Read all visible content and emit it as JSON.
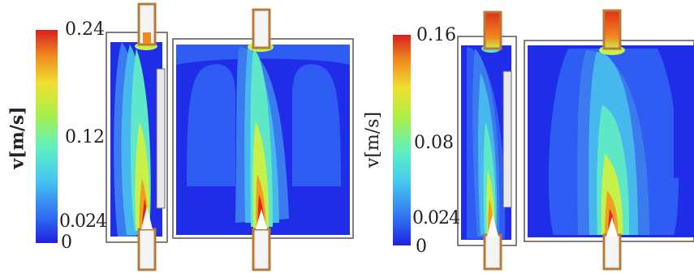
{
  "panels": [
    {
      "colorbar": {
        "unit_label": "v[m/s]",
        "ticks": [
          "0.24",
          "0.12",
          "0.024",
          "0"
        ],
        "tick_values": [
          0.24,
          0.12,
          0.024,
          0
        ]
      },
      "views": [
        "side-section",
        "front-section"
      ]
    },
    {
      "colorbar": {
        "unit_label": "v[m/s]",
        "ticks": [
          "0.16",
          "0.08",
          "0.024",
          "0"
        ],
        "tick_values": [
          0.16,
          0.08,
          0.024,
          0
        ]
      },
      "views": [
        "side-section",
        "front-section"
      ]
    }
  ],
  "colors": {
    "background_field": "#1f2de8",
    "low": "#2f5cf2",
    "mid_low": "#47b8ee",
    "mid": "#5fe8c8",
    "mid_high": "#c8f04a",
    "high": "#f0c020",
    "max": "#e02818",
    "pipe_wall": "#b87a3a"
  }
}
